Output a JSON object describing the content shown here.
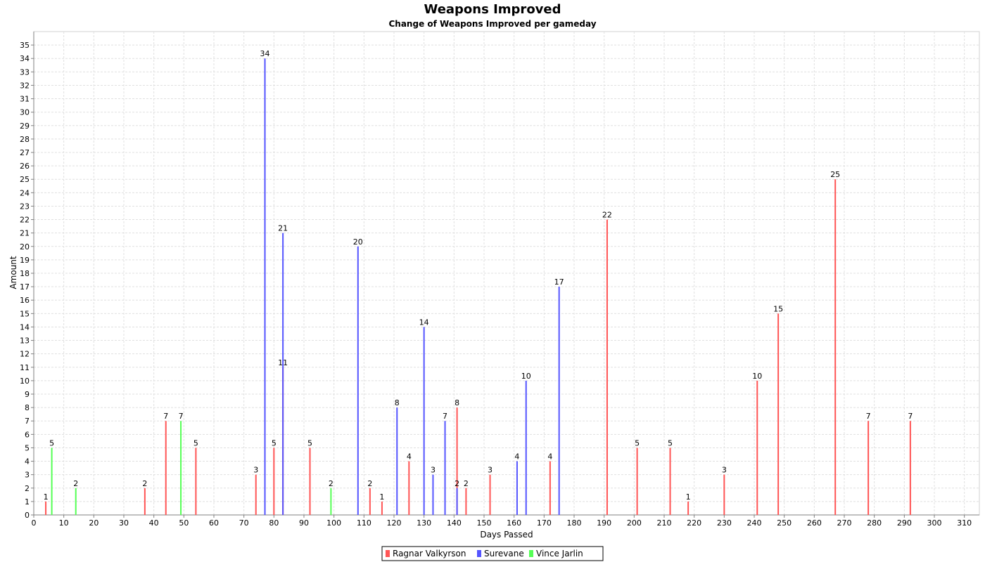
{
  "chart_data": {
    "type": "bar",
    "title": "Weapons Improved",
    "subtitle": "Change of Weapons Improved per gameday",
    "xlabel": "Days Passed",
    "ylabel": "Amount",
    "xlim": [
      0,
      315
    ],
    "ylim": [
      0,
      36
    ],
    "x_ticks": [
      0,
      10,
      20,
      30,
      40,
      50,
      60,
      70,
      80,
      90,
      100,
      110,
      120,
      130,
      140,
      150,
      160,
      170,
      180,
      190,
      200,
      210,
      220,
      230,
      240,
      250,
      260,
      270,
      280,
      290,
      300,
      310
    ],
    "y_ticks": [
      0,
      1,
      2,
      3,
      4,
      5,
      6,
      7,
      8,
      9,
      10,
      11,
      12,
      13,
      14,
      15,
      16,
      17,
      18,
      19,
      20,
      21,
      22,
      23,
      24,
      25,
      26,
      27,
      28,
      29,
      30,
      31,
      32,
      33,
      34,
      35
    ],
    "grid": true,
    "legend_position": "bottom",
    "series": [
      {
        "name": "Ragnar Valkyrson",
        "color": "#ff5555",
        "points": [
          {
            "x": 4,
            "y": 1
          },
          {
            "x": 37,
            "y": 2
          },
          {
            "x": 44,
            "y": 7
          },
          {
            "x": 54,
            "y": 5
          },
          {
            "x": 74,
            "y": 3
          },
          {
            "x": 80,
            "y": 5
          },
          {
            "x": 83,
            "y": 11
          },
          {
            "x": 92,
            "y": 5
          },
          {
            "x": 112,
            "y": 2
          },
          {
            "x": 116,
            "y": 1
          },
          {
            "x": 125,
            "y": 4
          },
          {
            "x": 141,
            "y": 8
          },
          {
            "x": 144,
            "y": 2
          },
          {
            "x": 152,
            "y": 3
          },
          {
            "x": 172,
            "y": 4
          },
          {
            "x": 191,
            "y": 22
          },
          {
            "x": 201,
            "y": 5
          },
          {
            "x": 212,
            "y": 5
          },
          {
            "x": 218,
            "y": 1
          },
          {
            "x": 230,
            "y": 3
          },
          {
            "x": 241,
            "y": 10
          },
          {
            "x": 248,
            "y": 15
          },
          {
            "x": 267,
            "y": 25
          },
          {
            "x": 278,
            "y": 7
          },
          {
            "x": 292,
            "y": 7
          }
        ]
      },
      {
        "name": "Surevane",
        "color": "#5555ff",
        "points": [
          {
            "x": 77,
            "y": 34
          },
          {
            "x": 83,
            "y": 21
          },
          {
            "x": 108,
            "y": 20
          },
          {
            "x": 121,
            "y": 8
          },
          {
            "x": 130,
            "y": 14
          },
          {
            "x": 133,
            "y": 3
          },
          {
            "x": 137,
            "y": 7
          },
          {
            "x": 141,
            "y": 2
          },
          {
            "x": 161,
            "y": 4
          },
          {
            "x": 164,
            "y": 10
          },
          {
            "x": 175,
            "y": 17
          }
        ]
      },
      {
        "name": "Vince Jarlin",
        "color": "#55ff55",
        "points": [
          {
            "x": 6,
            "y": 5
          },
          {
            "x": 14,
            "y": 2
          },
          {
            "x": 49,
            "y": 7
          },
          {
            "x": 99,
            "y": 2
          }
        ]
      }
    ]
  }
}
